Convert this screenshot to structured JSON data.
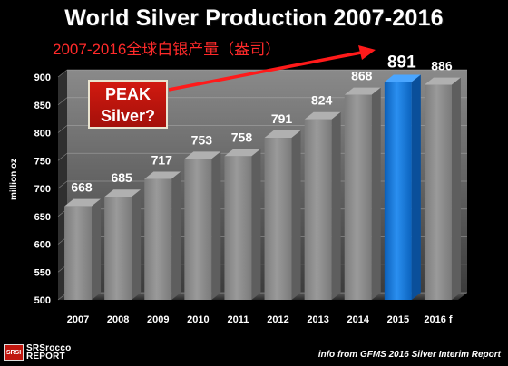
{
  "title": "World Silver Production 2007-2016",
  "subtitle": "2007-2016全球白银产量（盎司）",
  "annotation": {
    "line1": "PEAK",
    "line2": "Silver?"
  },
  "source": "info from GFMS 2016 Silver Interim Report",
  "logo": {
    "badge": "SRSI",
    "line1": "SRSrocco",
    "line2": "REPORT"
  },
  "colors": {
    "bar": "#8c8c8c",
    "highlight_bar": "#1a7fd9",
    "background": "#000000",
    "subtitle": "#ff2a2a",
    "arrow": "#ff1a1a"
  },
  "chart_data": {
    "type": "bar",
    "categories": [
      "2007",
      "2008",
      "2009",
      "2010",
      "2011",
      "2012",
      "2013",
      "2014",
      "2015",
      "2016 f"
    ],
    "values": [
      668,
      685,
      717,
      753,
      758,
      791,
      824,
      868,
      891,
      886
    ],
    "value_labels": [
      "668",
      "685",
      "717",
      "753",
      "758",
      "791",
      "824",
      "868",
      "891",
      "886"
    ],
    "highlight_category": "2015",
    "ylabel": "million oz",
    "xlabel": "",
    "ylim": [
      500,
      900
    ],
    "yticks": [
      "500",
      "550",
      "600",
      "650",
      "700",
      "750",
      "800",
      "850",
      "900"
    ],
    "grid": true,
    "legend": "none"
  }
}
